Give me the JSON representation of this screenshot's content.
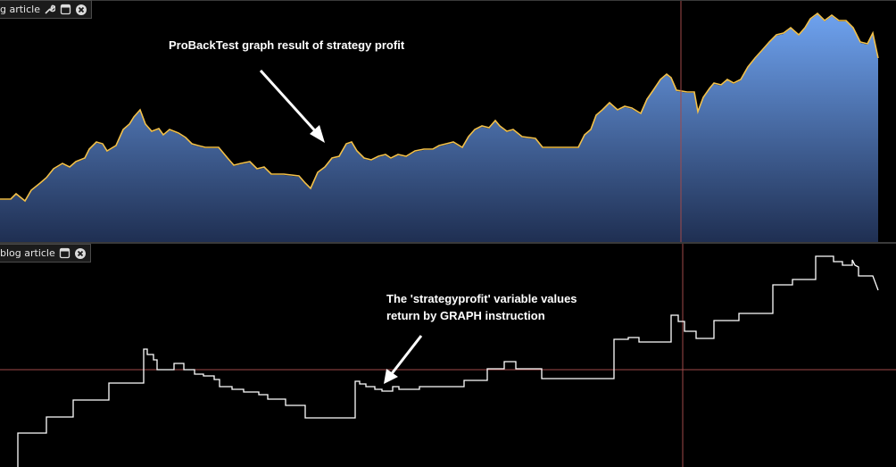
{
  "top_panel": {
    "title": "g article",
    "annotation": "ProBackTest graph result of strategy profit",
    "icons": [
      "wrench-icon",
      "window-icon",
      "close-icon"
    ],
    "colors": {
      "fill_top": "#6ea2ef",
      "fill_bottom": "#1f2f52",
      "edge": "#f3c14a",
      "crosshair": "#a04a4a"
    }
  },
  "bottom_panel": {
    "title": "blog article",
    "annotation_line1": "The 'strategyprofit' variable values",
    "annotation_line2": "return by GRAPH instruction",
    "icons": [
      "window-icon",
      "close-icon"
    ],
    "colors": {
      "line": "#ffffff",
      "crosshair": "#a04a4a"
    }
  }
}
